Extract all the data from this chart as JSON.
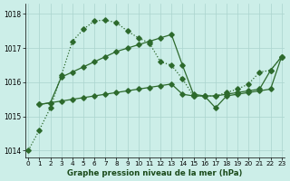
{
  "line1_x": [
    0,
    1,
    2,
    3,
    4,
    5,
    6,
    7,
    8,
    9,
    10,
    11,
    12,
    13,
    14,
    15,
    16,
    17,
    18,
    19,
    20,
    21,
    22,
    23
  ],
  "line1_y": [
    1014.0,
    1014.6,
    1015.25,
    1016.2,
    1017.2,
    1017.55,
    1017.8,
    1017.82,
    1017.75,
    1017.5,
    1017.3,
    1017.15,
    1016.6,
    1016.5,
    1016.1,
    1015.6,
    1015.6,
    1015.6,
    1015.7,
    1015.8,
    1015.95,
    1016.3,
    1016.35,
    1016.75
  ],
  "line2_x": [
    1,
    2,
    3,
    4,
    5,
    6,
    7,
    8,
    9,
    10,
    11,
    12,
    13,
    14,
    15,
    16,
    17,
    18,
    19,
    20,
    21,
    22,
    23
  ],
  "line2_y": [
    1015.35,
    1015.4,
    1016.15,
    1016.3,
    1016.45,
    1016.6,
    1016.75,
    1016.9,
    1017.0,
    1017.1,
    1017.2,
    1017.3,
    1017.4,
    1016.5,
    1015.65,
    1015.6,
    1015.6,
    1015.65,
    1015.7,
    1015.75,
    1015.8,
    1016.35,
    1016.75
  ],
  "line3_x": [
    1,
    2,
    3,
    4,
    5,
    6,
    7,
    8,
    9,
    10,
    11,
    12,
    13,
    14,
    15,
    16,
    17,
    18,
    19,
    20,
    21,
    22,
    23
  ],
  "line3_y": [
    1015.35,
    1015.4,
    1015.45,
    1015.5,
    1015.55,
    1015.6,
    1015.65,
    1015.7,
    1015.75,
    1015.8,
    1015.85,
    1015.9,
    1015.95,
    1015.65,
    1015.6,
    1015.6,
    1015.25,
    1015.6,
    1015.65,
    1015.7,
    1015.75,
    1015.8,
    1016.75
  ],
  "bg_color": "#cceee8",
  "grid_color": "#aad4ce",
  "line_color": "#2d6a2d",
  "xlabel": "Graphe pression niveau de la mer (hPa)",
  "ylim": [
    1013.8,
    1018.3
  ],
  "xlim": [
    -0.3,
    23.3
  ],
  "yticks": [
    1014,
    1015,
    1016,
    1017,
    1018
  ],
  "xticks": [
    0,
    1,
    2,
    3,
    4,
    5,
    6,
    7,
    8,
    9,
    10,
    11,
    12,
    13,
    14,
    15,
    16,
    17,
    18,
    19,
    20,
    21,
    22,
    23
  ]
}
